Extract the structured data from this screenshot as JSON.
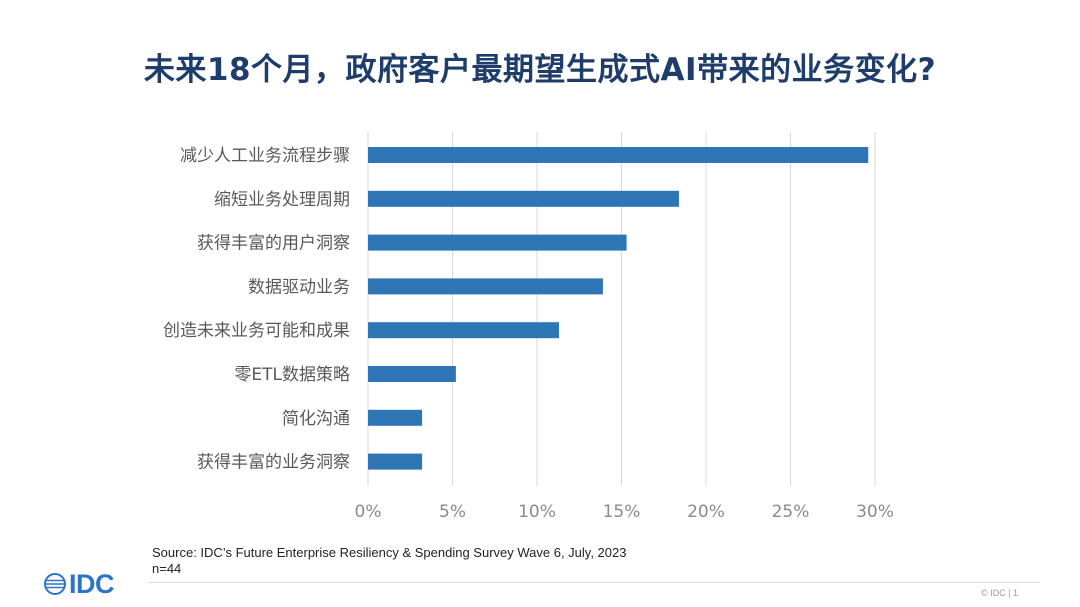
{
  "title": "未来18个月，政府客户最期望生成式AI带来的业务变化?",
  "chart_data": {
    "type": "bar",
    "orientation": "horizontal",
    "categories": [
      "减少人工业务流程步骤",
      "缩短业务处理周期",
      "获得丰富的用户洞察",
      "数据驱动业务",
      "创造未来业务可能和成果",
      "零ETL数据策略",
      "简化沟通",
      "获得丰富的业务洞察"
    ],
    "values": [
      29.6,
      18.4,
      15.3,
      13.9,
      11.3,
      5.2,
      3.2,
      3.2
    ],
    "xlim": [
      0,
      30
    ],
    "xticks": [
      0,
      5,
      10,
      15,
      20,
      25,
      30
    ],
    "tick_labels": [
      "0%",
      "5%",
      "10%",
      "15%",
      "20%",
      "25%",
      "30%"
    ],
    "bar_color": "#2e75b6",
    "grid": true
  },
  "source": {
    "line1": "Source: IDC’s Future Enterprise Resiliency & Spending Survey Wave 6, July, 2023",
    "line2": "n=44"
  },
  "logo": {
    "text": "IDC",
    "color": "#2b74c9"
  },
  "footer": {
    "note": "© IDC |  1"
  }
}
